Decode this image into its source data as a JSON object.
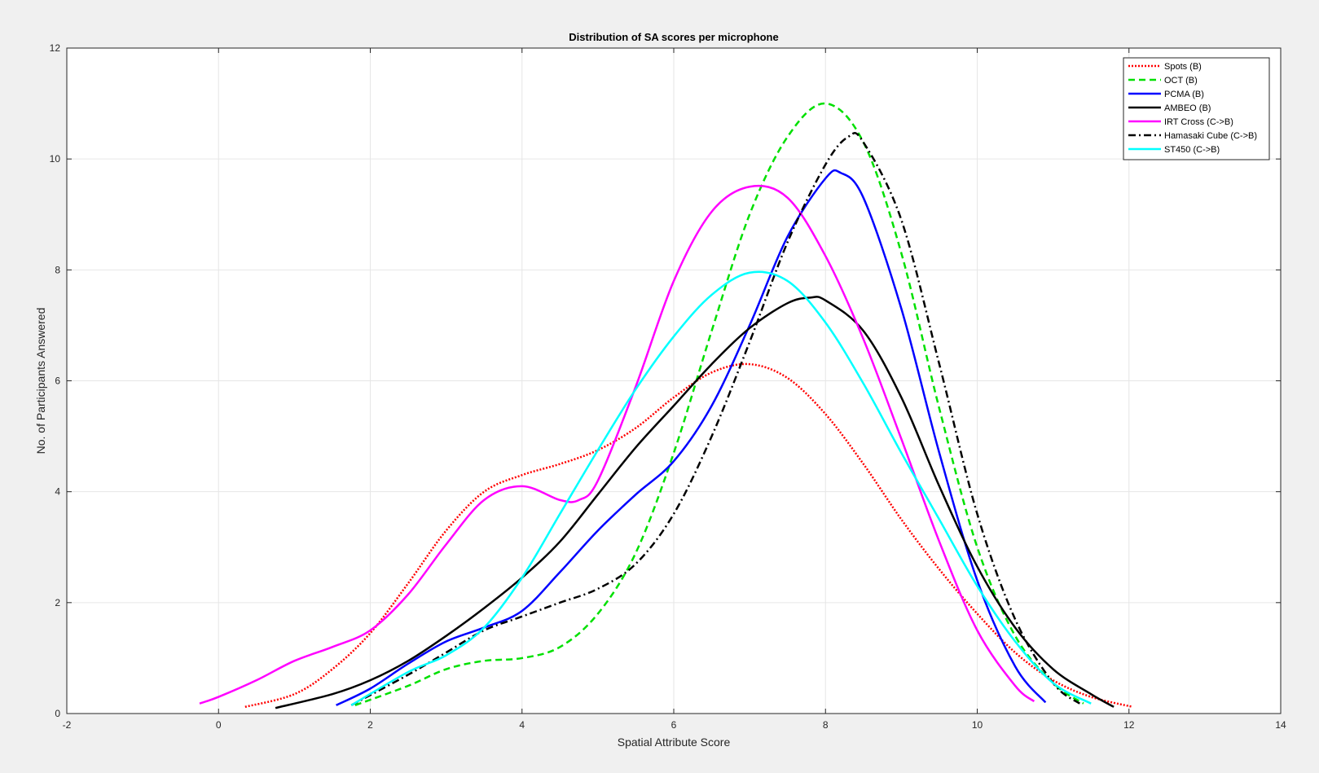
{
  "chart_data": {
    "type": "line",
    "title": "Distribution of SA scores per microphone",
    "xlabel": "Spatial Attribute Score",
    "ylabel": "No. of Participants Answered",
    "xlim": [
      -2,
      14
    ],
    "ylim": [
      0,
      12
    ],
    "xticks": [
      -2,
      0,
      2,
      4,
      6,
      8,
      10,
      12,
      14
    ],
    "yticks": [
      0,
      2,
      4,
      6,
      8,
      10,
      12
    ],
    "grid": true,
    "legend_position": "top-right",
    "series": [
      {
        "name": "Spots (B)",
        "color": "#ff0000",
        "dash": "dotted",
        "x": [
          0.35,
          1.0,
          1.5,
          2.0,
          2.5,
          3.0,
          3.5,
          4.0,
          4.5,
          5.0,
          5.5,
          6.0,
          6.5,
          7.0,
          7.5,
          8.0,
          8.5,
          9.0,
          9.5,
          10.0,
          10.5,
          11.0,
          11.5,
          12.05
        ],
        "y": [
          0.12,
          0.35,
          0.8,
          1.45,
          2.35,
          3.3,
          4.0,
          4.3,
          4.5,
          4.75,
          5.15,
          5.7,
          6.15,
          6.3,
          6.05,
          5.4,
          4.5,
          3.5,
          2.6,
          1.8,
          1.1,
          0.6,
          0.3,
          0.12
        ]
      },
      {
        "name": "OCT (B)",
        "color": "#00e000",
        "dash": "dashed",
        "x": [
          1.8,
          2.5,
          3.0,
          3.5,
          4.0,
          4.5,
          5.0,
          5.5,
          6.0,
          6.5,
          7.0,
          7.5,
          8.0,
          8.5,
          9.0,
          9.5,
          10.0,
          10.5,
          11.0,
          11.4
        ],
        "y": [
          0.15,
          0.5,
          0.8,
          0.95,
          1.0,
          1.2,
          1.8,
          2.9,
          4.7,
          6.9,
          9.0,
          10.4,
          11.0,
          10.3,
          8.3,
          5.5,
          3.0,
          1.4,
          0.55,
          0.18
        ]
      },
      {
        "name": "PCMA (B)",
        "color": "#0000ff",
        "dash": "solid",
        "x": [
          1.55,
          2.0,
          2.5,
          3.0,
          3.5,
          4.0,
          4.5,
          5.0,
          5.5,
          6.0,
          6.5,
          7.0,
          7.5,
          8.0,
          8.2,
          8.5,
          9.0,
          9.5,
          10.0,
          10.5,
          10.9
        ],
        "y": [
          0.15,
          0.45,
          0.9,
          1.3,
          1.55,
          1.85,
          2.55,
          3.3,
          3.95,
          4.55,
          5.55,
          7.0,
          8.6,
          9.65,
          9.75,
          9.3,
          7.3,
          4.7,
          2.4,
          0.85,
          0.2
        ]
      },
      {
        "name": "AMBEO (B)",
        "color": "#000000",
        "dash": "solid",
        "x": [
          0.75,
          1.5,
          2.0,
          2.5,
          3.0,
          3.5,
          4.0,
          4.5,
          5.0,
          5.5,
          6.0,
          6.5,
          7.0,
          7.5,
          7.8,
          8.0,
          8.5,
          9.0,
          9.5,
          10.0,
          10.5,
          11.0,
          11.5,
          11.8
        ],
        "y": [
          0.1,
          0.35,
          0.6,
          0.95,
          1.4,
          1.9,
          2.45,
          3.1,
          3.95,
          4.8,
          5.55,
          6.3,
          6.95,
          7.4,
          7.5,
          7.45,
          6.9,
          5.7,
          4.1,
          2.65,
          1.55,
          0.8,
          0.35,
          0.12
        ]
      },
      {
        "name": "IRT Cross (C->B)",
        "color": "#ff00ff",
        "dash": "solid",
        "x": [
          -0.25,
          0.0,
          0.5,
          1.0,
          1.5,
          2.0,
          2.5,
          3.0,
          3.5,
          4.0,
          4.5,
          4.75,
          5.0,
          5.5,
          6.0,
          6.5,
          7.0,
          7.5,
          8.0,
          8.5,
          9.0,
          9.5,
          10.0,
          10.5,
          10.75
        ],
        "y": [
          0.18,
          0.3,
          0.6,
          0.95,
          1.2,
          1.5,
          2.15,
          3.05,
          3.85,
          4.1,
          3.85,
          3.85,
          4.2,
          5.9,
          7.8,
          9.05,
          9.5,
          9.3,
          8.25,
          6.75,
          4.95,
          3.1,
          1.5,
          0.5,
          0.22
        ]
      },
      {
        "name": "Hamasaki Cube (C->B)",
        "color": "#000000",
        "dash": "dashdot",
        "x": [
          1.75,
          2.5,
          3.0,
          3.5,
          4.0,
          4.5,
          5.0,
          5.5,
          6.0,
          6.5,
          7.0,
          7.5,
          8.0,
          8.3,
          8.5,
          9.0,
          9.5,
          10.0,
          10.5,
          11.0,
          11.35
        ],
        "y": [
          0.15,
          0.7,
          1.1,
          1.5,
          1.75,
          2.0,
          2.25,
          2.7,
          3.6,
          5.0,
          6.7,
          8.5,
          9.9,
          10.4,
          10.3,
          8.9,
          6.3,
          3.6,
          1.7,
          0.55,
          0.18
        ]
      },
      {
        "name": "ST450 (C->B)",
        "color": "#00ffff",
        "dash": "solid",
        "x": [
          1.75,
          2.5,
          3.0,
          3.5,
          4.0,
          4.5,
          5.0,
          5.5,
          6.0,
          6.5,
          7.0,
          7.5,
          8.0,
          8.5,
          9.0,
          9.5,
          10.0,
          10.5,
          11.0,
          11.5
        ],
        "y": [
          0.15,
          0.75,
          1.05,
          1.55,
          2.45,
          3.6,
          4.75,
          5.85,
          6.8,
          7.55,
          7.95,
          7.8,
          7.05,
          5.95,
          4.7,
          3.5,
          2.3,
          1.3,
          0.55,
          0.18
        ]
      }
    ]
  }
}
